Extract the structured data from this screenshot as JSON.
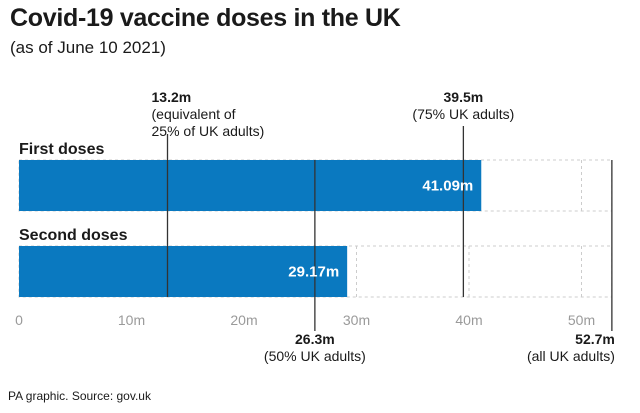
{
  "chart_data": {
    "type": "bar",
    "orientation": "horizontal",
    "title": "Covid-19 vaccine doses in the UK",
    "subtitle": "(as of June 10 2021)",
    "categories": [
      "First doses",
      "Second doses"
    ],
    "values": [
      41.09,
      29.17
    ],
    "value_labels": [
      "41.09m",
      "29.17m"
    ],
    "xlim": [
      0,
      52.7
    ],
    "x_ticks": [
      0,
      10,
      20,
      30,
      40,
      50
    ],
    "x_tick_labels": [
      "0",
      "10m",
      "20m",
      "30m",
      "40m",
      "50m"
    ],
    "grid": true,
    "bar_color": "#0a79c0",
    "reference_lines": [
      {
        "value": 13.2,
        "label": "13.2m",
        "note": [
          "(equivalent of",
          "25% of UK adults)"
        ],
        "position": "top"
      },
      {
        "value": 39.5,
        "label": "39.5m",
        "note": [
          "(75% UK adults)"
        ],
        "position": "top"
      },
      {
        "value": 26.3,
        "label": "26.3m",
        "note": [
          "(50% UK adults)"
        ],
        "position": "bottom"
      },
      {
        "value": 52.7,
        "label": "52.7m",
        "note": [
          "(all UK adults)"
        ],
        "position": "bottom"
      }
    ],
    "source": "PA graphic. Source: gov.uk"
  }
}
